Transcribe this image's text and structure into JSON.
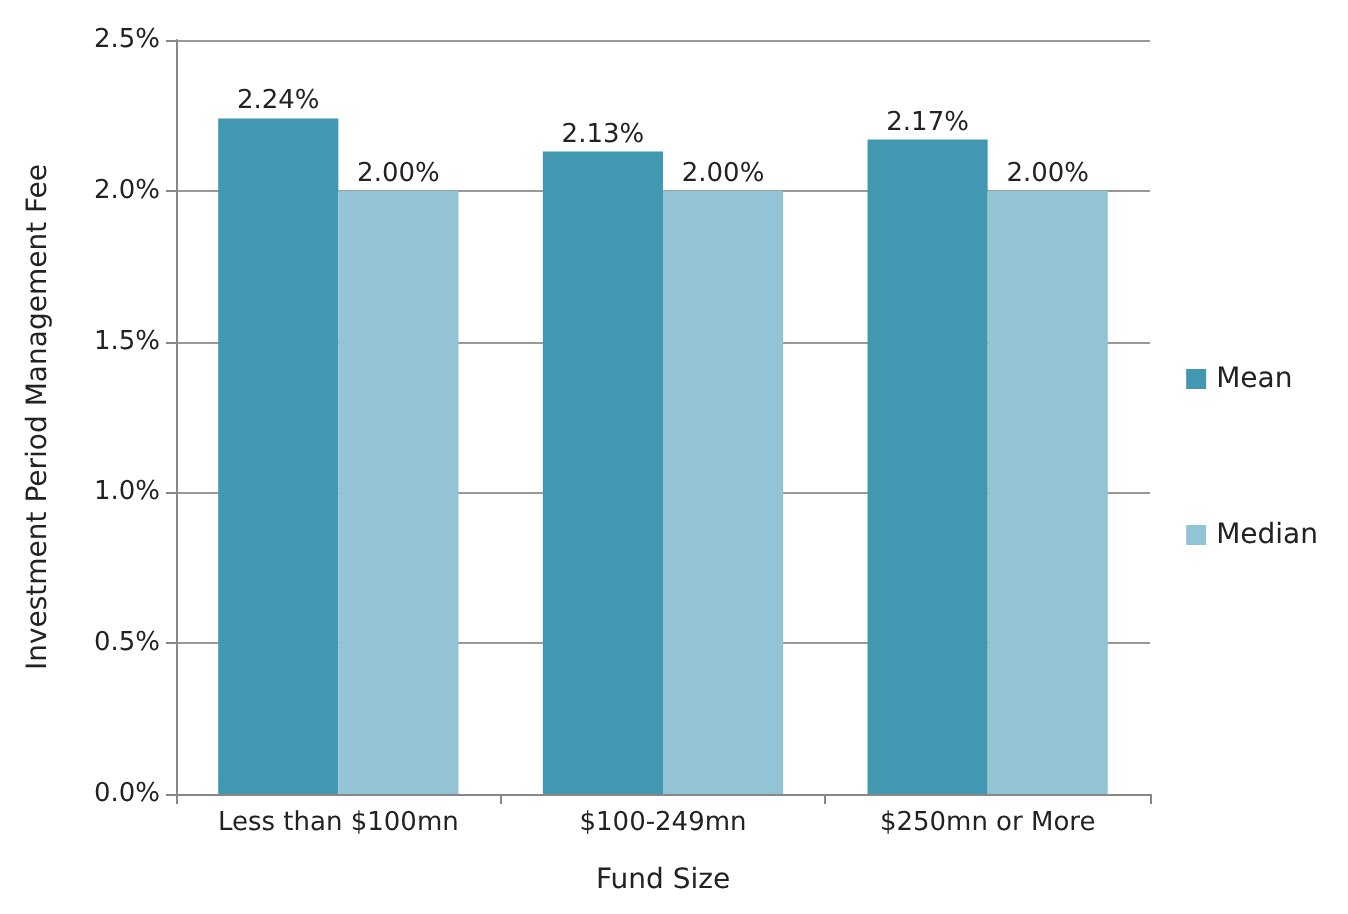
{
  "chart_data": {
    "type": "bar",
    "xlabel": "Fund Size",
    "ylabel": "Investment Period Management Fee",
    "categories": [
      "Less than $100mn",
      "$100-249mn",
      "$250mn or More"
    ],
    "series": [
      {
        "name": "Mean",
        "color": "#4198b0",
        "values": [
          2.24,
          2.13,
          2.17
        ],
        "value_labels": [
          "2.24%",
          "2.13%",
          "2.17%"
        ]
      },
      {
        "name": "Median",
        "color": "#93c4d6",
        "values": [
          2.0,
          2.0,
          2.0
        ],
        "value_labels": [
          "2.00%",
          "2.00%",
          "2.00%"
        ]
      }
    ],
    "ylim": [
      0,
      2.5
    ],
    "yticks": [
      {
        "value": 0,
        "label": "0.0%"
      },
      {
        "value": 0.5,
        "label": "0.5%"
      },
      {
        "value": 1,
        "label": "1.0%"
      },
      {
        "value": 1.5,
        "label": "1.5%"
      },
      {
        "value": 2,
        "label": "2.0%"
      },
      {
        "value": 2.5,
        "label": "2.5%"
      }
    ],
    "grid": "y",
    "legend": "right"
  }
}
